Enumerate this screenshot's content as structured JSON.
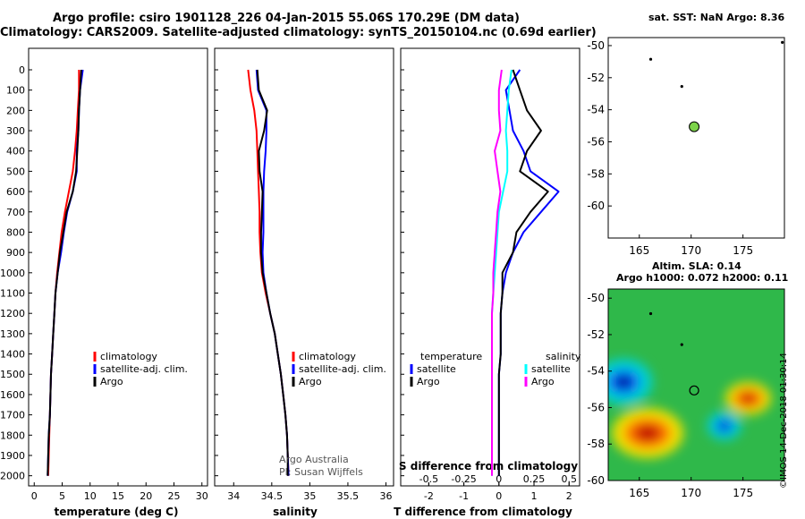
{
  "title_line1": "Argo profile: csiro 1901128_226 04-Jan-2015 55.06S 170.29E (DM data)",
  "title_line2": "Climatology: CARS2009. Satellite-adjusted climatology: synTS_20150104.nc (0.69d earlier)",
  "sst_title": "sat. SST: NaN Argo: 8.36",
  "sla_title1": "Altim. SLA: 0.14",
  "sla_title2": "Argo h1000: 0.072 h2000: 0.11",
  "stamp": "©IMOS 14-Dec-2018 01:30:14",
  "credit1": "Argo Australia",
  "credit2": "PI: Susan Wijffels",
  "colors": {
    "climatology": "#ff0000",
    "satellite": "#0000ff",
    "argo": "#000000",
    "sat_s": "#00ffff",
    "argo_s": "#ff00ff",
    "float_marker": "#7cd34a"
  },
  "legend_panel1": [
    "climatology",
    "satellite-adj. clim.",
    "Argo"
  ],
  "legend_panel2": [
    "climatology",
    "satellite-adj. clim.",
    "Argo"
  ],
  "legend_panel3": {
    "temperature": "temperature",
    "salinity": "salinity",
    "t_items": [
      "satellite",
      "Argo"
    ],
    "s_items": [
      "satellite",
      "Argo"
    ]
  },
  "chart_data": [
    {
      "type": "line",
      "xlabel": "temperature (deg C)",
      "ylabel": "",
      "xlim": [
        -1,
        31
      ],
      "ylim": [
        2050,
        0
      ],
      "xticks": [
        0,
        5,
        10,
        15,
        20,
        25,
        30
      ],
      "yticks": [
        0,
        100,
        200,
        300,
        400,
        500,
        600,
        700,
        800,
        900,
        1000,
        1100,
        1200,
        1300,
        1400,
        1500,
        1600,
        1700,
        1800,
        1900,
        2000
      ],
      "grid": false,
      "series": [
        {
          "name": "climatology",
          "x": [
            8.0,
            8.0,
            7.8,
            7.6,
            7.3,
            6.9,
            6.2,
            5.5,
            4.9,
            4.5,
            4.1,
            3.8,
            3.6,
            3.4,
            3.2,
            3.0,
            2.9,
            2.8,
            2.7,
            2.6,
            2.5
          ],
          "y": [
            0,
            100,
            200,
            300,
            400,
            500,
            600,
            700,
            800,
            900,
            1000,
            1100,
            1200,
            1300,
            1400,
            1500,
            1600,
            1700,
            1800,
            1900,
            2000
          ]
        },
        {
          "name": "satellite-adj. clim.",
          "x": [
            8.7,
            8.2,
            8.0,
            7.9,
            7.6,
            7.6,
            6.9,
            5.9,
            5.3,
            4.8,
            4.2,
            3.8,
            3.6,
            3.4,
            3.2,
            3.0,
            2.9,
            2.8,
            2.6,
            2.5,
            2.4
          ],
          "y": [
            0,
            100,
            200,
            300,
            400,
            500,
            600,
            700,
            800,
            900,
            1000,
            1100,
            1200,
            1300,
            1400,
            1500,
            1600,
            1700,
            1800,
            1900,
            2000
          ]
        },
        {
          "name": "Argo",
          "x": [
            8.4,
            8.2,
            8.0,
            7.9,
            7.7,
            7.5,
            6.9,
            5.8,
            5.2,
            4.6,
            4.2,
            3.8,
            3.6,
            3.4,
            3.2,
            3.0,
            2.9,
            2.8,
            2.6,
            2.5,
            2.4
          ],
          "y": [
            0,
            100,
            200,
            300,
            400,
            500,
            600,
            700,
            800,
            900,
            1000,
            1100,
            1200,
            1300,
            1400,
            1500,
            1600,
            1700,
            1800,
            1900,
            2000
          ]
        }
      ]
    },
    {
      "type": "line",
      "xlabel": "salinity",
      "ylabel": "",
      "xlim": [
        33.75,
        36.1
      ],
      "ylim": [
        2050,
        0
      ],
      "xticks": [
        34,
        34.5,
        35,
        35.5,
        36
      ],
      "xticklabels": [
        "34",
        "34.5",
        "35",
        "35.5",
        "36"
      ],
      "grid": false,
      "series": [
        {
          "name": "climatology",
          "x": [
            34.19,
            34.22,
            34.27,
            34.3,
            34.31,
            34.32,
            34.33,
            34.34,
            34.34,
            34.35,
            34.37,
            34.42,
            34.48,
            34.54,
            34.58,
            34.62,
            34.65,
            34.68,
            34.7,
            34.71,
            34.72
          ],
          "y": [
            0,
            100,
            200,
            300,
            400,
            500,
            600,
            700,
            800,
            900,
            1000,
            1100,
            1200,
            1300,
            1400,
            1500,
            1600,
            1700,
            1800,
            1900,
            2000
          ]
        },
        {
          "name": "satellite-adj. clim.",
          "x": [
            34.3,
            34.32,
            34.43,
            34.43,
            34.42,
            34.4,
            34.39,
            34.39,
            34.39,
            34.38,
            34.39,
            34.43,
            34.48,
            34.54,
            34.58,
            34.62,
            34.65,
            34.68,
            34.7,
            34.71,
            34.72
          ],
          "y": [
            0,
            100,
            200,
            300,
            400,
            500,
            600,
            700,
            800,
            900,
            1000,
            1100,
            1200,
            1300,
            1400,
            1500,
            1600,
            1700,
            1800,
            1900,
            2000
          ]
        },
        {
          "name": "Argo",
          "x": [
            34.31,
            34.33,
            34.44,
            34.4,
            34.33,
            34.34,
            34.38,
            34.37,
            34.36,
            34.36,
            34.38,
            34.43,
            34.48,
            34.54,
            34.58,
            34.62,
            34.65,
            34.68,
            34.7,
            34.71,
            34.71
          ],
          "y": [
            0,
            100,
            200,
            300,
            400,
            500,
            600,
            700,
            800,
            900,
            1000,
            1100,
            1200,
            1300,
            1400,
            1500,
            1600,
            1700,
            1800,
            1900,
            2000
          ]
        }
      ]
    },
    {
      "type": "line",
      "xlabel": "T difference from climatology",
      "xlabel2": "S difference from climatology",
      "xlim": [
        -2.8,
        2.3
      ],
      "x2lim": [
        -0.7,
        0.575
      ],
      "ylim": [
        2050,
        0
      ],
      "xticks": [
        -2,
        -1,
        0,
        1,
        2
      ],
      "x2ticks": [
        -0.5,
        -0.25,
        0,
        0.25,
        0.5
      ],
      "x2ticklabels": [
        "-0.5",
        "-0.25",
        "0",
        "0.25",
        "0.5"
      ],
      "grid": false,
      "series": [
        {
          "name": "temperature satellite",
          "axis": "T",
          "x": [
            0.6,
            0.2,
            0.3,
            0.4,
            0.7,
            0.9,
            1.7,
            1.2,
            0.7,
            0.4,
            0.2,
            0.1,
            0.05,
            0.05,
            0.05,
            0.0,
            0.0,
            0.0,
            0.0,
            0.0,
            0.0
          ],
          "y": [
            0,
            100,
            200,
            300,
            400,
            500,
            600,
            700,
            800,
            900,
            1000,
            1100,
            1200,
            1300,
            1400,
            1500,
            1600,
            1700,
            1800,
            1900,
            2000
          ]
        },
        {
          "name": "temperature Argo",
          "axis": "T",
          "x": [
            0.4,
            0.6,
            0.8,
            1.2,
            0.8,
            0.6,
            1.4,
            0.9,
            0.5,
            0.4,
            0.1,
            0.1,
            0.05,
            0.05,
            0.05,
            0.0,
            0.0,
            0.0,
            0.0,
            0.0,
            0.0
          ],
          "y": [
            0,
            100,
            200,
            300,
            400,
            500,
            600,
            700,
            800,
            900,
            1000,
            1100,
            1200,
            1300,
            1400,
            1500,
            1600,
            1700,
            1800,
            1900,
            2000
          ]
        },
        {
          "name": "salinity satellite",
          "axis": "S",
          "x": [
            0.09,
            0.07,
            0.06,
            0.05,
            0.06,
            0.06,
            0.03,
            0.0,
            -0.01,
            -0.02,
            -0.03,
            -0.04,
            -0.05,
            -0.05,
            -0.05,
            -0.05,
            -0.05,
            -0.05,
            -0.05,
            -0.05,
            -0.05
          ],
          "y": [
            0,
            100,
            200,
            300,
            400,
            500,
            600,
            700,
            800,
            900,
            1000,
            1100,
            1200,
            1300,
            1400,
            1500,
            1600,
            1700,
            1800,
            1900,
            2000
          ]
        },
        {
          "name": "salinity Argo",
          "axis": "S",
          "x": [
            0.02,
            0.0,
            0.0,
            0.01,
            -0.03,
            -0.01,
            0.01,
            -0.01,
            -0.02,
            -0.03,
            -0.04,
            -0.04,
            -0.05,
            -0.05,
            -0.05,
            -0.05,
            -0.05,
            -0.05,
            -0.05,
            -0.05,
            -0.05
          ],
          "y": [
            0,
            100,
            200,
            300,
            400,
            500,
            600,
            700,
            800,
            900,
            1000,
            1100,
            1200,
            1300,
            1400,
            1500,
            1600,
            1700,
            1800,
            1900,
            2000
          ]
        }
      ]
    },
    {
      "type": "scatter",
      "title": "sat. SST: NaN Argo: 8.36",
      "xlim": [
        162,
        179
      ],
      "ylim": [
        -62,
        -49.5
      ],
      "xticks": [
        165,
        170,
        175
      ],
      "yticks": [
        -50,
        -52,
        -54,
        -56,
        -58,
        -60
      ],
      "points": [
        {
          "label": "profile",
          "x": 170.29,
          "y": -55.06,
          "marker": "filled-circle"
        },
        {
          "label": "prev1",
          "x": 166.1,
          "y": -50.85,
          "marker": "dot"
        },
        {
          "label": "prev2",
          "x": 169.1,
          "y": -52.55,
          "marker": "dot"
        },
        {
          "label": "prev3",
          "x": 178.8,
          "y": -49.8,
          "marker": "dot"
        }
      ]
    },
    {
      "type": "heatmap",
      "title": "Altim. SLA: 0.14",
      "subtitle": "Argo h1000: 0.072 h2000: 0.11",
      "xlim": [
        162,
        179
      ],
      "ylim": [
        -60,
        -49.5
      ],
      "xticks": [
        165,
        170,
        175
      ],
      "yticks": [
        -50,
        -52,
        -54,
        -56,
        -58,
        -60
      ],
      "features": [
        {
          "kind": "negative",
          "x": 163.5,
          "y": -54.6,
          "strength": -1.0
        },
        {
          "kind": "positive",
          "x": 165.8,
          "y": -57.4,
          "strength": 1.0
        },
        {
          "kind": "positive",
          "x": 175.5,
          "y": -55.5,
          "strength": 0.6
        },
        {
          "kind": "negative",
          "x": 173.2,
          "y": -57.0,
          "strength": -0.5
        }
      ],
      "points": [
        {
          "label": "profile",
          "x": 170.29,
          "y": -55.06,
          "marker": "open-circle"
        },
        {
          "label": "prev1",
          "x": 166.1,
          "y": -50.85,
          "marker": "dot"
        },
        {
          "label": "prev2",
          "x": 169.1,
          "y": -52.55,
          "marker": "dot"
        }
      ]
    }
  ]
}
